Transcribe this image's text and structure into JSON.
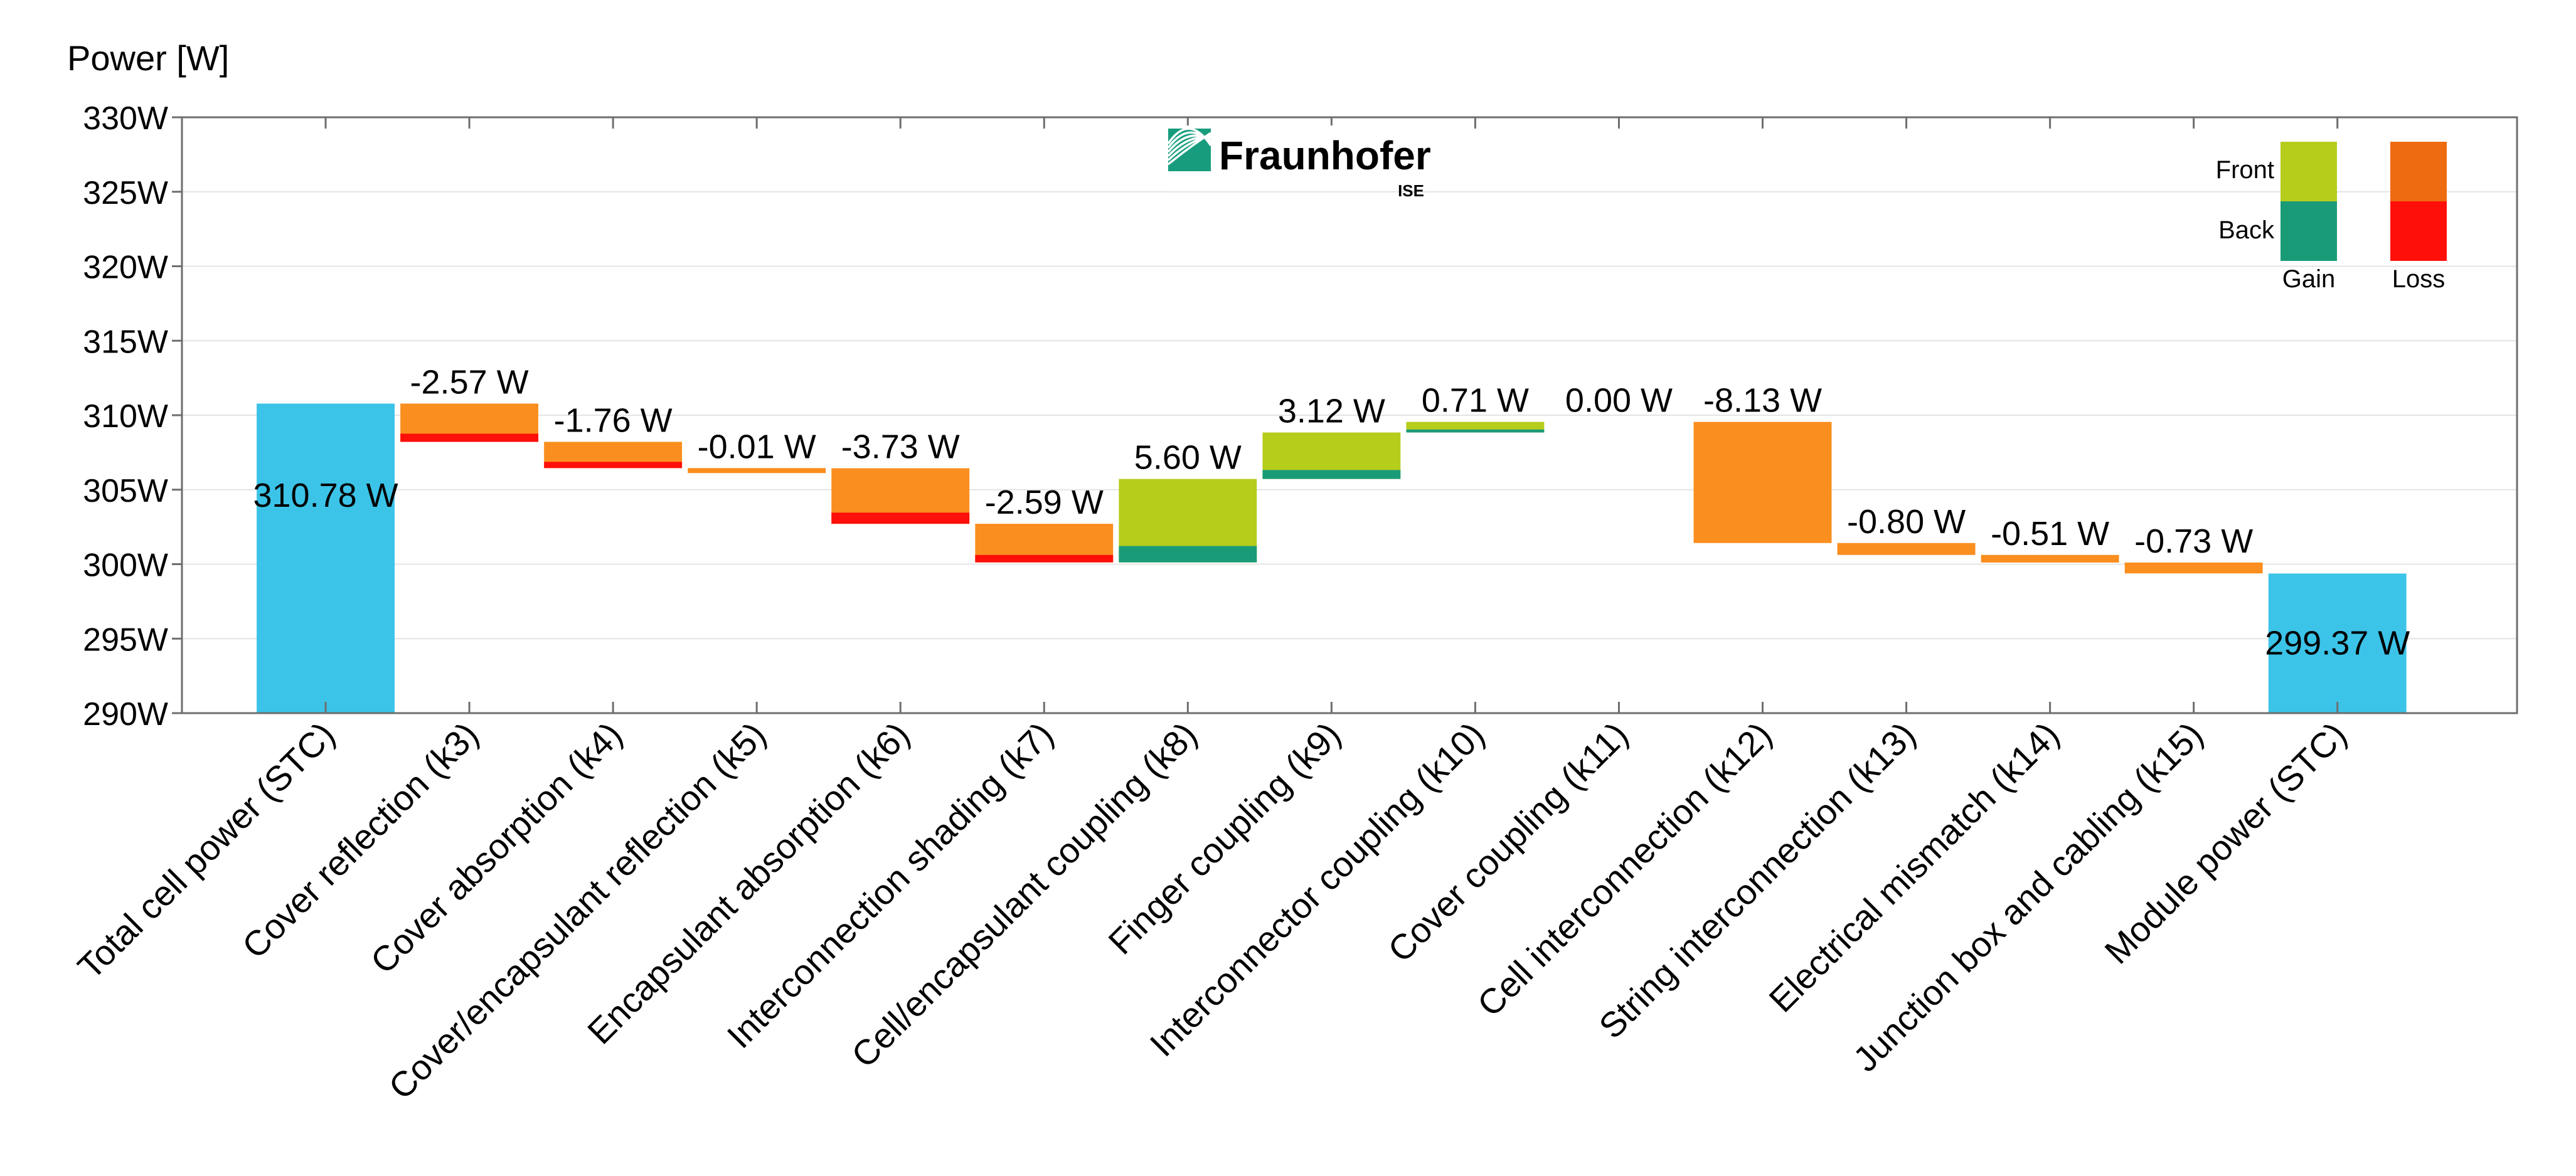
{
  "chart_data": {
    "type": "waterfall",
    "ylabel": "Power [W]",
    "ylim": [
      290,
      330
    ],
    "ytick_step": 5,
    "ytick_suffix": "W",
    "grid": true,
    "start_value": 310.78,
    "end_value": 299.37,
    "steps": [
      {
        "label": "Total cell power (STC)",
        "kind": "total",
        "value": 310.78,
        "value_label": "310.78 W"
      },
      {
        "label": "Cover reflection (k3)",
        "kind": "loss",
        "value": -2.57,
        "back": 0.55,
        "value_label": "-2.57 W"
      },
      {
        "label": "Cover absorption (k4)",
        "kind": "loss",
        "value": -1.76,
        "back": 0.42,
        "value_label": "-1.76 W"
      },
      {
        "label": "Cover/encapsulant reflection (k5)",
        "kind": "loss",
        "value": -0.01,
        "back": 0.0,
        "value_label": "-0.01 W"
      },
      {
        "label": "Encapsulant absorption (k6)",
        "kind": "loss",
        "value": -3.73,
        "back": 0.75,
        "value_label": "-3.73 W"
      },
      {
        "label": "Interconnection shading (k7)",
        "kind": "loss",
        "value": -2.59,
        "back": 0.5,
        "value_label": "-2.59 W"
      },
      {
        "label": "Cell/encapsulant coupling (k8)",
        "kind": "gain",
        "value": 5.6,
        "back": 1.1,
        "value_label": "5.60 W"
      },
      {
        "label": "Finger coupling (k9)",
        "kind": "gain",
        "value": 3.12,
        "back": 0.6,
        "value_label": "3.12 W"
      },
      {
        "label": "Interconnector coupling (k10)",
        "kind": "gain",
        "value": 0.71,
        "back": 0.2,
        "value_label": "0.71 W"
      },
      {
        "label": "Cover coupling (k11)",
        "kind": "gain",
        "value": 0.0,
        "back": 0.0,
        "value_label": "0.00 W"
      },
      {
        "label": "Cell interconnection (k12)",
        "kind": "loss",
        "value": -8.13,
        "back": 0.0,
        "value_label": "-8.13 W"
      },
      {
        "label": "String interconnection (k13)",
        "kind": "loss",
        "value": -0.8,
        "back": 0.0,
        "value_label": "-0.80 W"
      },
      {
        "label": "Electrical mismatch (k14)",
        "kind": "loss",
        "value": -0.51,
        "back": 0.0,
        "value_label": "-0.51 W"
      },
      {
        "label": "Junction box and cabling (k15)",
        "kind": "loss",
        "value": -0.73,
        "back": 0.0,
        "value_label": "-0.73 W"
      },
      {
        "label": "Module power (STC)",
        "kind": "total",
        "value": 299.37,
        "value_label": "299.37 W"
      }
    ],
    "legend": {
      "placement": "top-right",
      "row_labels": [
        "Front",
        "Back"
      ],
      "column_labels": [
        "Gain",
        "Loss"
      ]
    },
    "colors": {
      "total": "#3cc3e8",
      "gain_front": "#b6cd1c",
      "gain_back": "#1a9b78",
      "loss_front": "#fa8e1e",
      "loss_back": "#fe0f09",
      "legend_loss_front": "#ef6b10",
      "grid": "#e4e4e4",
      "axis": "#6e6e6e"
    }
  },
  "logo": {
    "name": "Fraunhofer",
    "sub": "ISE",
    "color": "#179c7d"
  }
}
